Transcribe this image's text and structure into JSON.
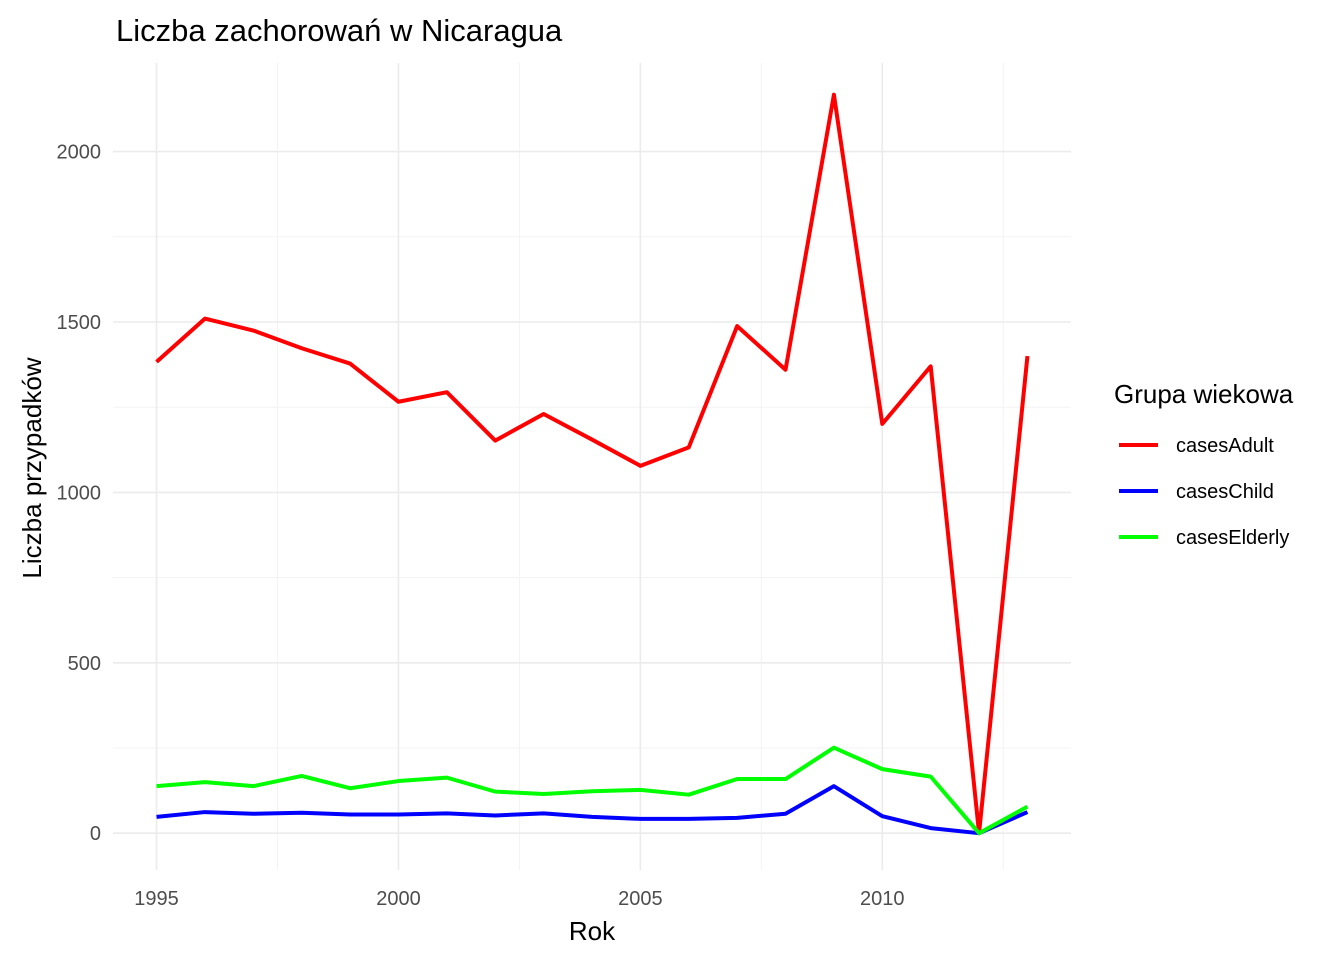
{
  "chart_data": {
    "type": "line",
    "title": "Liczba zachorowań w Nicaragua",
    "xlabel": "Rok",
    "ylabel": "Liczba przypadków",
    "x": [
      1995,
      1996,
      1997,
      1998,
      1999,
      2000,
      2001,
      2002,
      2003,
      2004,
      2005,
      2006,
      2007,
      2008,
      2009,
      2010,
      2011,
      2012,
      2013
    ],
    "xlim": [
      1994.1,
      2013.9
    ],
    "ylim": [
      -108,
      2260
    ],
    "x_ticks": [
      1995,
      2000,
      2005,
      2010
    ],
    "y_ticks": [
      0,
      500,
      1000,
      1500,
      2000
    ],
    "x_tick_labels": [
      "1995",
      "2000",
      "2005",
      "2010"
    ],
    "y_tick_labels": [
      "0",
      "500",
      "1000",
      "1500",
      "2000"
    ],
    "grid": true,
    "legend": {
      "title": "Grupa wiekowa",
      "position": "right"
    },
    "series": [
      {
        "name": "casesAdult",
        "color": "#ff0000",
        "values": [
          1383,
          1510,
          1475,
          1423,
          1378,
          1266,
          1294,
          1152,
          1230,
          1155,
          1078,
          1132,
          1488,
          1360,
          2167,
          1201,
          1370,
          0,
          1400
        ]
      },
      {
        "name": "casesChild",
        "color": "#0000ff",
        "values": [
          48,
          62,
          57,
          60,
          55,
          55,
          58,
          52,
          58,
          48,
          42,
          42,
          45,
          57,
          138,
          50,
          15,
          0,
          62
        ]
      },
      {
        "name": "casesElderly",
        "color": "#00ff00",
        "values": [
          138,
          150,
          138,
          168,
          132,
          153,
          163,
          122,
          115,
          123,
          127,
          113,
          159,
          159,
          251,
          188,
          166,
          0,
          78
        ]
      }
    ]
  }
}
